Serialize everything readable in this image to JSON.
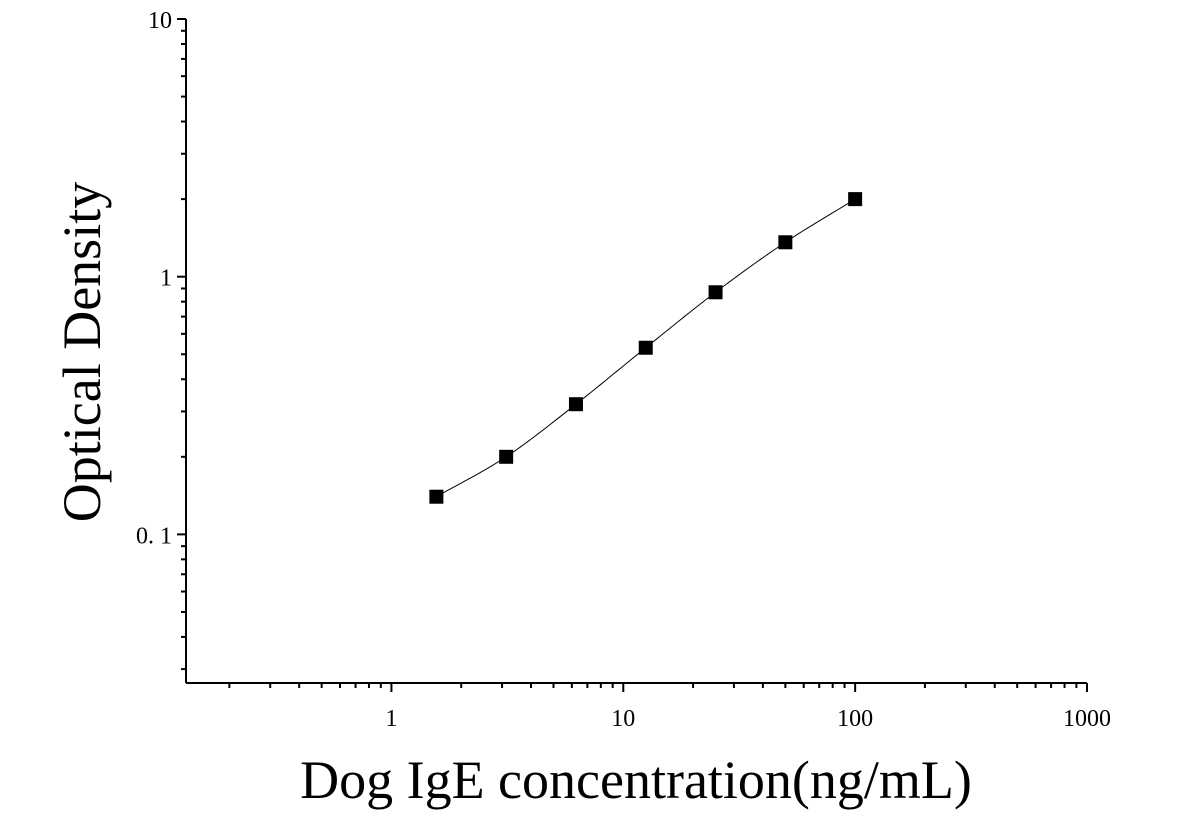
{
  "chart_data": {
    "type": "scatter",
    "title": "",
    "xlabel": "Dog IgE concentration(ng/mL)",
    "ylabel": "Optical Density",
    "x_scale": "log",
    "y_scale": "log",
    "xlim": [
      0.13,
      1000
    ],
    "ylim": [
      0.0265,
      10
    ],
    "x_ticks": [
      {
        "value": 1,
        "label": "1"
      },
      {
        "value": 10,
        "label": "10"
      },
      {
        "value": 100,
        "label": "100"
      },
      {
        "value": 1000,
        "label": "1000"
      }
    ],
    "y_ticks": [
      {
        "value": 0.1,
        "label": "0. 1"
      },
      {
        "value": 1,
        "label": "1"
      },
      {
        "value": 10,
        "label": "10"
      }
    ],
    "grid": false,
    "legend": "none",
    "series": [
      {
        "x": [
          1.5625,
          3.125,
          6.25,
          12.5,
          25,
          50,
          100
        ],
        "y": [
          0.14,
          0.2,
          0.32,
          0.53,
          0.87,
          1.36,
          2.0
        ],
        "marker": "square",
        "fit_curve": true,
        "color": "#000000"
      }
    ]
  }
}
